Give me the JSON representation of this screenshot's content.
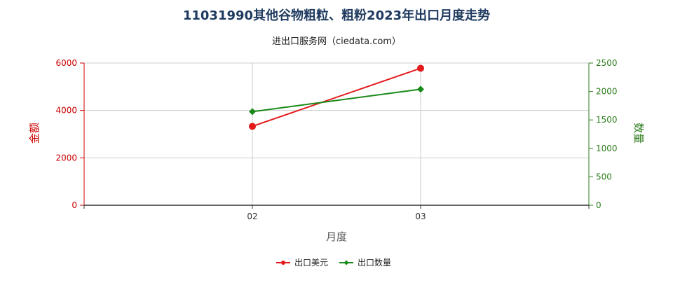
{
  "chart_data": {
    "type": "line",
    "title": "11031990其他谷物粗粒、粗粉2023年出口月度走势",
    "subtitle": "进出口服务网（ciedata.com）",
    "xlabel": "月度",
    "ylabel_left": "金额",
    "ylabel_right": "数量",
    "categories": [
      "02",
      "03"
    ],
    "x_slots": 3,
    "y_left": {
      "min": 0,
      "max": 6000,
      "ticks": [
        0,
        2000,
        4000,
        6000
      ]
    },
    "y_right": {
      "min": 0,
      "max": 2500,
      "ticks": [
        0,
        500,
        1000,
        1500,
        2000,
        2500
      ]
    },
    "grid": true,
    "legend_position": "bottom-center",
    "series": [
      {
        "name": "出口美元",
        "axis": "left",
        "color": "#e31a1c",
        "marker": "circle",
        "values": [
          3330,
          5780
        ]
      },
      {
        "name": "出口数量",
        "axis": "right",
        "color": "#1a8a1a",
        "marker": "diamond",
        "values": [
          1645,
          2040
        ]
      }
    ],
    "colors": {
      "left_axis": "#cc0000",
      "right_axis": "#2e7d1e",
      "title": "#1f3a5f",
      "grid": "#cccccc",
      "axis": "#333333"
    }
  }
}
